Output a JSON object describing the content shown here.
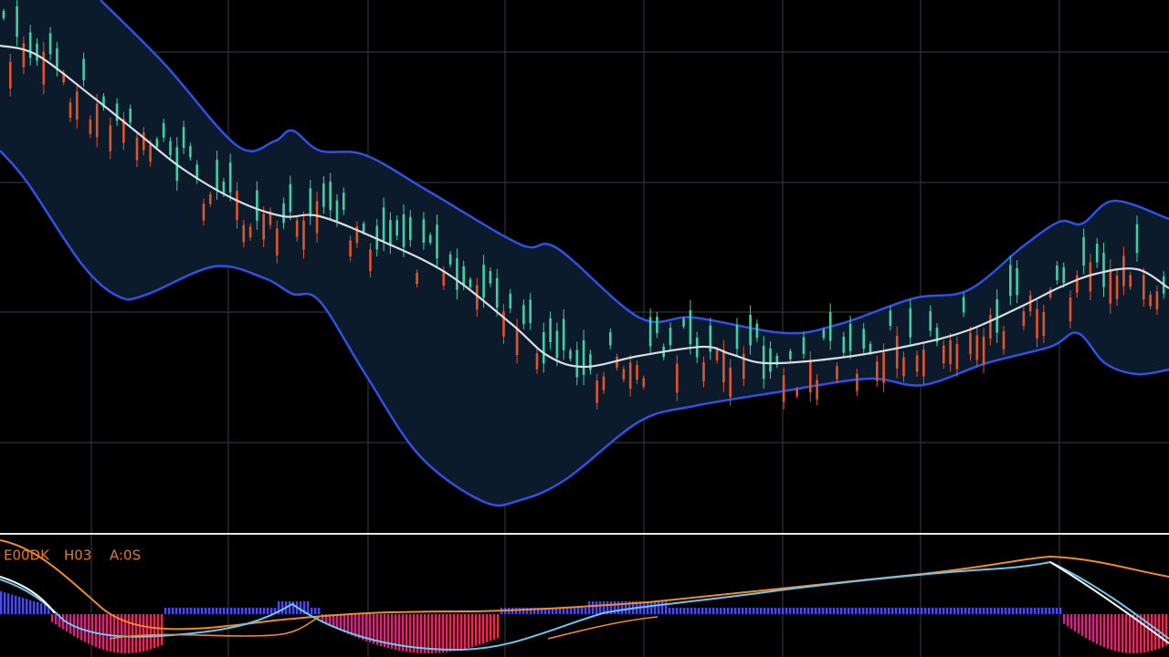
{
  "indicator_panel": {
    "labels": [
      "E00DK",
      "H03",
      "A:0S"
    ]
  }
}
